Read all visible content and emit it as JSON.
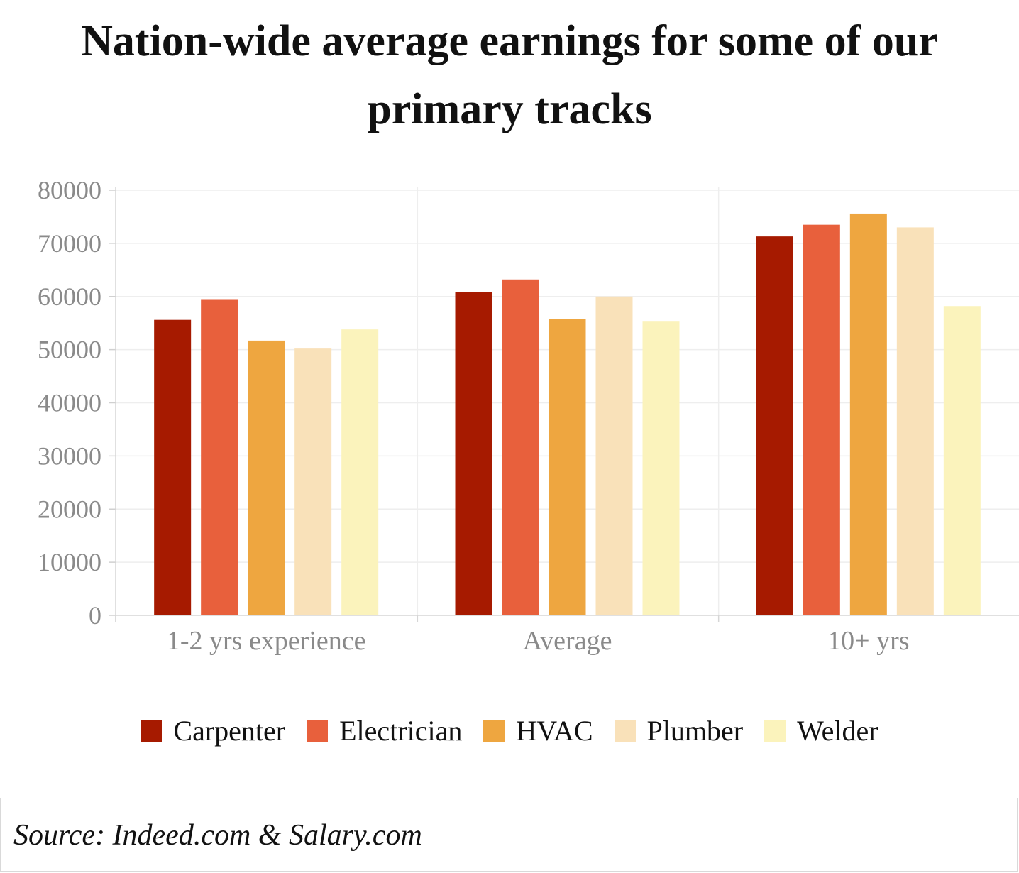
{
  "chart_data": {
    "type": "bar",
    "title": "Nation-wide average earnings for some of our primary tracks",
    "xlabel": "",
    "ylabel": "",
    "ylim": [
      0,
      80000
    ],
    "yticks": [
      0,
      10000,
      20000,
      30000,
      40000,
      50000,
      60000,
      70000,
      80000
    ],
    "categories": [
      "1-2 yrs experience",
      "Average",
      "10+ yrs"
    ],
    "series": [
      {
        "name": "Carpenter",
        "color": "#a61a00",
        "values": [
          55600,
          60800,
          71300
        ]
      },
      {
        "name": "Electrician",
        "color": "#e8603c",
        "values": [
          59500,
          63200,
          73500
        ]
      },
      {
        "name": "HVAC",
        "color": "#eea640",
        "values": [
          51700,
          55800,
          75600
        ]
      },
      {
        "name": "Plumber",
        "color": "#f9e1b9",
        "values": [
          50200,
          60000,
          73000
        ]
      },
      {
        "name": "Welder",
        "color": "#fbf3bc",
        "values": [
          53800,
          55400,
          58200
        ]
      }
    ],
    "legend": "bottom",
    "grid": true
  },
  "source": "Source: Indeed.com & Salary.com"
}
